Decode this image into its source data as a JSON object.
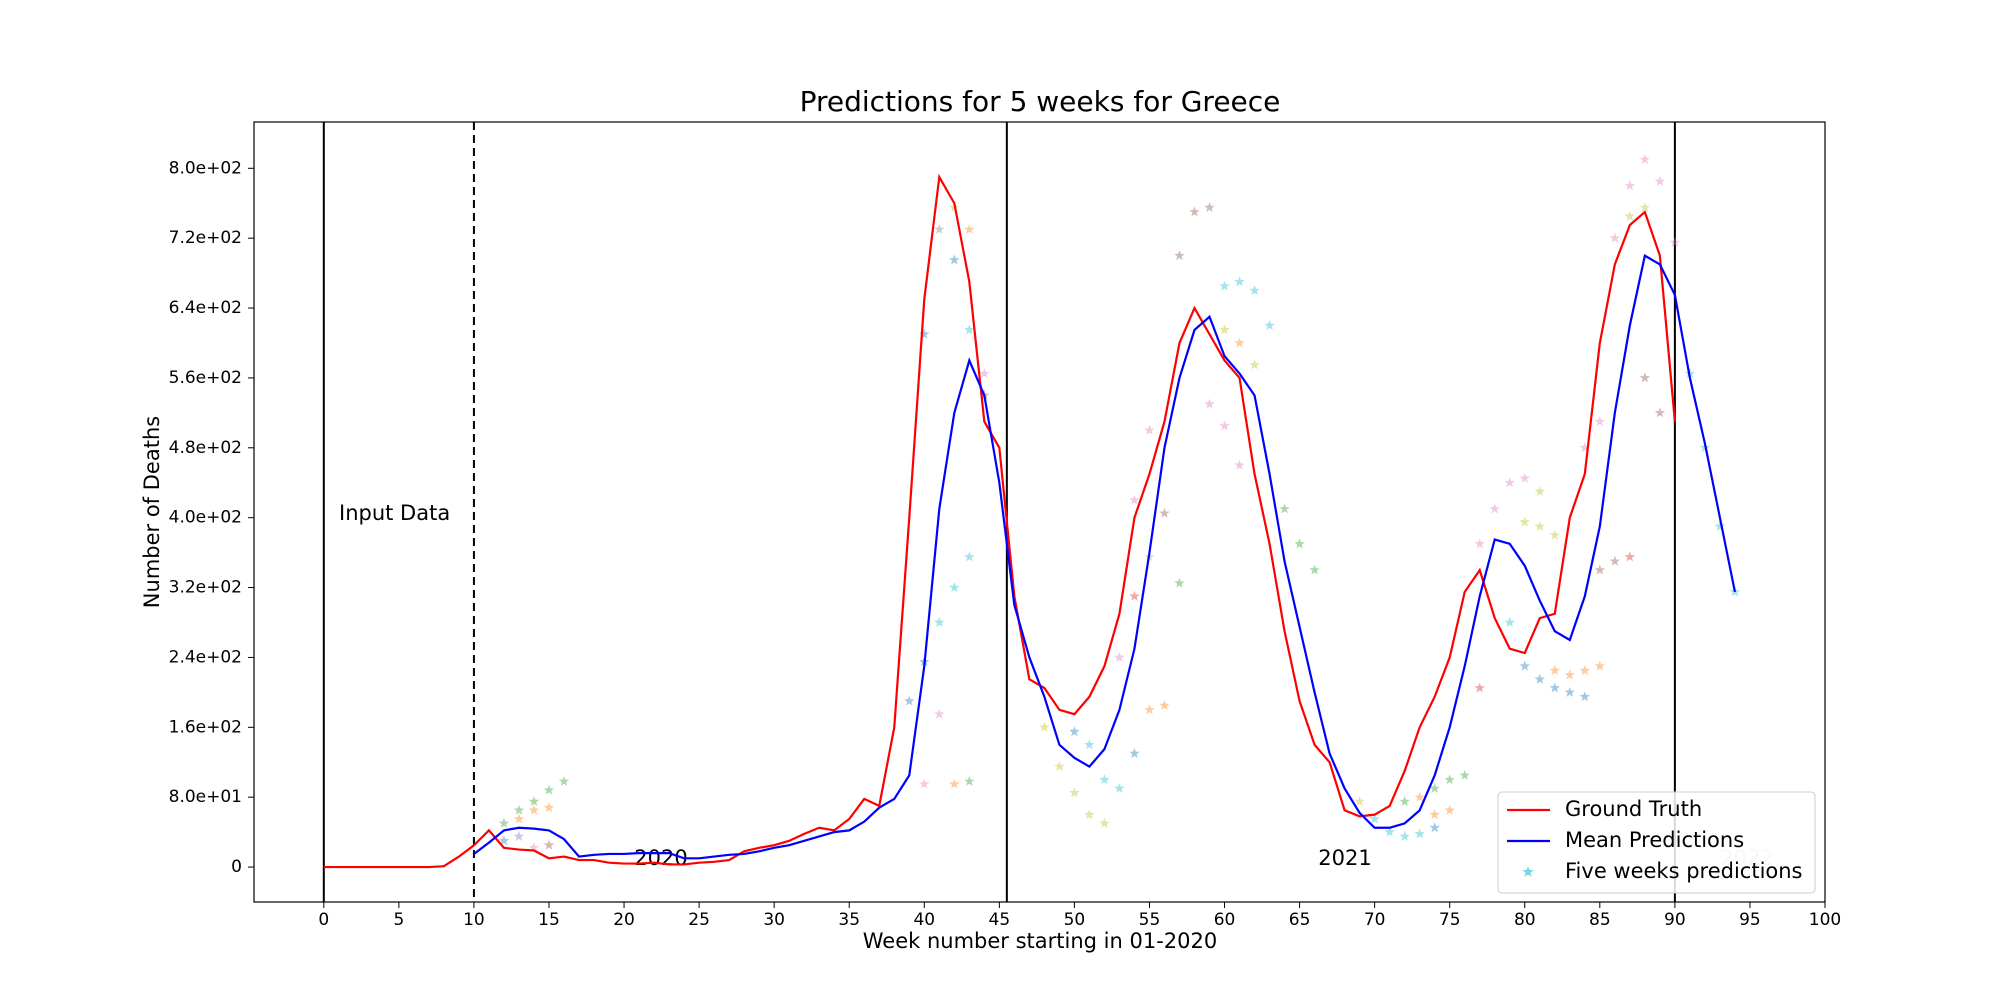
{
  "chart_data": {
    "type": "line",
    "title": "Predictions for 5 weeks for Greece",
    "xlabel": "Week number starting in 01-2020",
    "ylabel": "Number of Deaths",
    "xlim": [
      -4.65,
      100
    ],
    "ylim": [
      -40,
      853
    ],
    "xticks": [
      0,
      5,
      10,
      15,
      20,
      25,
      30,
      35,
      40,
      45,
      50,
      55,
      60,
      65,
      70,
      75,
      80,
      85,
      90,
      95,
      100
    ],
    "yticks": [
      0,
      {
        "value": 80,
        "label": "8.0e+01"
      },
      {
        "value": 160,
        "label": "1.6e+02"
      },
      {
        "value": 240,
        "label": "2.4e+02"
      },
      {
        "value": 320,
        "label": "3.2e+02"
      },
      {
        "value": 400,
        "label": "4.0e+02"
      },
      {
        "value": 480,
        "label": "4.8e+02"
      },
      {
        "value": 560,
        "label": "5.6e+02"
      },
      {
        "value": 640,
        "label": "6.4e+02"
      },
      {
        "value": 720,
        "label": "7.2e+02"
      },
      {
        "value": 800,
        "label": "8.0e+02"
      }
    ],
    "vlines": [
      {
        "x": 0,
        "dashed": false
      },
      {
        "x": 10,
        "dashed": true
      },
      {
        "x": 45.5,
        "dashed": false
      },
      {
        "x": 90,
        "dashed": false
      }
    ],
    "annotations": [
      "Input Data",
      "2020",
      "2021",
      "2022"
    ],
    "legend": "lower right",
    "series": [
      {
        "name": "Ground Truth",
        "color": "#ff0000",
        "x": [
          0,
          1,
          2,
          3,
          4,
          5,
          6,
          7,
          8,
          9,
          10,
          11,
          12,
          13,
          14,
          15,
          16,
          17,
          18,
          19,
          20,
          21,
          22,
          23,
          24,
          25,
          26,
          27,
          28,
          29,
          30,
          31,
          32,
          33,
          34,
          35,
          36,
          37,
          38,
          39,
          40,
          41,
          42,
          43,
          44,
          45,
          46,
          47,
          48,
          49,
          50,
          51,
          52,
          53,
          54,
          55,
          56,
          57,
          58,
          59,
          60,
          61,
          62,
          63,
          64,
          65,
          66,
          67,
          68,
          69,
          70,
          71,
          72,
          73,
          74,
          75,
          76,
          77,
          78,
          79,
          80,
          81,
          82,
          83,
          84,
          85,
          86,
          87,
          88,
          89,
          90
        ],
        "values": [
          0,
          0,
          0,
          0,
          0,
          0,
          0,
          0,
          1,
          12,
          25,
          42,
          22,
          20,
          19,
          10,
          12,
          8,
          8,
          5,
          4,
          4,
          5,
          3,
          3,
          5,
          6,
          8,
          18,
          22,
          25,
          30,
          38,
          45,
          42,
          55,
          78,
          70,
          160,
          400,
          650,
          790,
          760,
          670,
          510,
          480,
          310,
          215,
          205,
          180,
          175,
          195,
          230,
          290,
          400,
          450,
          510,
          600,
          640,
          610,
          580,
          560,
          450,
          370,
          270,
          190,
          140,
          120,
          65,
          58,
          60,
          70,
          110,
          160,
          195,
          240,
          315,
          340,
          285,
          250,
          245,
          285,
          290,
          400,
          450,
          600,
          690,
          735,
          750,
          700,
          510
        ]
      },
      {
        "name": "Mean Predictions",
        "color": "#0000ff",
        "x": [
          10,
          11,
          12,
          13,
          14,
          15,
          16,
          17,
          18,
          19,
          20,
          21,
          22,
          23,
          24,
          25,
          26,
          27,
          28,
          29,
          30,
          31,
          32,
          33,
          34,
          35,
          36,
          37,
          38,
          39,
          40,
          41,
          42,
          43,
          44,
          45,
          46,
          47,
          48,
          49,
          50,
          51,
          52,
          53,
          54,
          55,
          56,
          57,
          58,
          59,
          60,
          61,
          62,
          63,
          64,
          65,
          66,
          67,
          68,
          69,
          70,
          71,
          72,
          73,
          74,
          75,
          76,
          77,
          78,
          79,
          80,
          81,
          82,
          83,
          84,
          85,
          86,
          87,
          88,
          89,
          90,
          91,
          92,
          93,
          94
        ],
        "values": [
          15,
          28,
          42,
          45,
          44,
          42,
          32,
          12,
          14,
          15,
          15,
          16,
          16,
          16,
          10,
          10,
          12,
          14,
          15,
          18,
          22,
          25,
          30,
          35,
          40,
          42,
          52,
          68,
          78,
          105,
          230,
          410,
          520,
          580,
          540,
          440,
          300,
          240,
          195,
          140,
          125,
          115,
          135,
          180,
          250,
          360,
          480,
          560,
          615,
          630,
          585,
          565,
          540,
          450,
          350,
          275,
          200,
          130,
          90,
          62,
          45,
          45,
          50,
          65,
          105,
          160,
          230,
          310,
          375,
          370,
          345,
          305,
          270,
          260,
          310,
          390,
          520,
          620,
          700,
          690,
          655,
          560,
          485,
          400,
          315
        ]
      },
      {
        "name": "Five weeks predictions",
        "color": "#17becf",
        "kind": "scatter",
        "alpha": 0.4,
        "x": [
          12,
          13,
          14,
          15,
          16,
          13,
          14,
          15,
          12,
          13,
          14,
          15,
          40,
          41,
          42,
          43,
          43,
          42,
          41,
          42,
          43,
          40,
          39,
          41,
          42,
          43,
          40,
          44,
          44,
          48,
          49,
          50,
          51,
          52,
          50,
          51,
          52,
          53,
          54,
          55,
          56,
          57,
          53,
          54,
          55,
          56,
          54,
          55,
          57,
          58,
          59,
          60,
          61,
          62,
          63,
          60,
          61,
          62,
          59,
          60,
          61,
          64,
          65,
          66,
          69,
          70,
          71,
          72,
          73,
          74,
          74,
          75,
          76,
          72,
          73,
          74,
          75,
          77,
          78,
          79,
          80,
          81,
          80,
          81,
          82,
          79,
          80,
          81,
          82,
          83,
          84,
          82,
          83,
          84,
          85,
          77,
          85,
          86,
          87,
          88,
          89,
          86,
          87,
          88,
          89,
          90,
          87,
          88,
          84,
          85,
          91,
          92,
          93,
          94
        ],
        "values": [
          50,
          65,
          75,
          88,
          98,
          55,
          65,
          68,
          30,
          35,
          22,
          25,
          610,
          730,
          755,
          730,
          615,
          695,
          280,
          320,
          355,
          235,
          190,
          175,
          95,
          98,
          95,
          565,
          540,
          160,
          115,
          85,
          60,
          50,
          155,
          140,
          100,
          90,
          130,
          180,
          185,
          325,
          240,
          310,
          355,
          405,
          420,
          500,
          700,
          750,
          755,
          665,
          670,
          660,
          620,
          615,
          600,
          575,
          530,
          505,
          460,
          410,
          370,
          340,
          75,
          55,
          40,
          35,
          38,
          45,
          90,
          100,
          105,
          75,
          80,
          60,
          65,
          370,
          410,
          440,
          445,
          430,
          395,
          390,
          380,
          280,
          230,
          215,
          205,
          200,
          195,
          225,
          220,
          225,
          230,
          205,
          340,
          350,
          355,
          560,
          520,
          720,
          780,
          810,
          785,
          715,
          745,
          755,
          480,
          510,
          565,
          480,
          390,
          315
        ],
        "colors": [
          "#2ca02c",
          "#2ca02c",
          "#2ca02c",
          "#2ca02c",
          "#2ca02c",
          "#ff7f0e",
          "#ff7f0e",
          "#ff7f0e",
          "#1f77b4",
          "#9467bd",
          "#e377c2",
          "#8c564b",
          "#1f77b4",
          "#7f7f7f",
          "#bcbd22",
          "#ff7f0e",
          "#17becf",
          "#1f77b4",
          "#17becf",
          "#17becf",
          "#17becf",
          "#1f77b4",
          "#1f77b4",
          "#e377c2",
          "#ff7f0e",
          "#2ca02c",
          "#e377c2",
          "#e377c2",
          "#8c564b",
          "#bcbd22",
          "#bcbd22",
          "#bcbd22",
          "#bcbd22",
          "#bcbd22",
          "#1f77b4",
          "#17becf",
          "#17becf",
          "#17becf",
          "#1f77b4",
          "#ff7f0e",
          "#ff7f0e",
          "#2ca02c",
          "#e377c2",
          "#d62728",
          "#bcbd22",
          "#8c564b",
          "#e377c2",
          "#e377c2",
          "#8c564b",
          "#8c564b",
          "#8c564b",
          "#17becf",
          "#17becf",
          "#17becf",
          "#17becf",
          "#bcbd22",
          "#ff7f0e",
          "#bcbd22",
          "#e377c2",
          "#e377c2",
          "#e377c2",
          "#2ca02c",
          "#2ca02c",
          "#2ca02c",
          "#bcbd22",
          "#17becf",
          "#17becf",
          "#17becf",
          "#17becf",
          "#1f77b4",
          "#2ca02c",
          "#2ca02c",
          "#2ca02c",
          "#2ca02c",
          "#ff7f0e",
          "#ff7f0e",
          "#ff7f0e",
          "#e377c2",
          "#e377c2",
          "#e377c2",
          "#e377c2",
          "#bcbd22",
          "#bcbd22",
          "#bcbd22",
          "#bcbd22",
          "#17becf",
          "#1f77b4",
          "#1f77b4",
          "#1f77b4",
          "#1f77b4",
          "#1f77b4",
          "#ff7f0e",
          "#ff7f0e",
          "#ff7f0e",
          "#ff7f0e",
          "#d62728",
          "#8c564b",
          "#8c564b",
          "#d62728",
          "#8c564b",
          "#8c564b",
          "#e377c2",
          "#e377c2",
          "#e377c2",
          "#e377c2",
          "#e377c2",
          "#bcbd22",
          "#bcbd22",
          "#e377c2",
          "#e377c2",
          "#17becf",
          "#17becf",
          "#17becf",
          "#17becf"
        ]
      }
    ]
  }
}
